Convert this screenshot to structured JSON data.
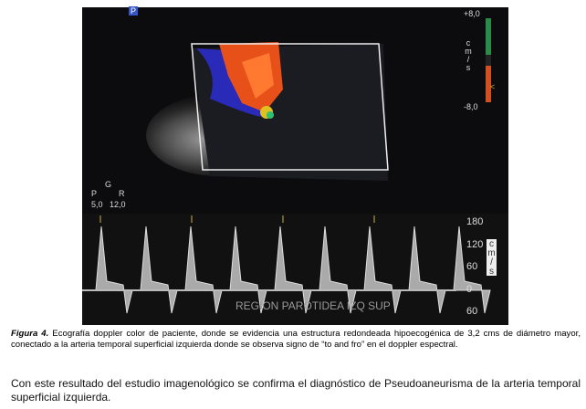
{
  "figure": {
    "ultrasound": {
      "marker": "P",
      "scale_top": "+8,0",
      "scale_unit": "cm/s",
      "scale_bottom": "-8,0",
      "pointer": "<",
      "probe": {
        "p": "P",
        "g": "G",
        "r": "R",
        "left": "5,0",
        "right": "12,0"
      }
    },
    "spectral": {
      "ticks": [
        "180",
        "120",
        "60",
        "0",
        "60"
      ],
      "unit": "cm/s",
      "overlay": "REGION PAROTIDEA IZQ SUP"
    }
  },
  "caption": {
    "label": "Figura 4.",
    "text": " Ecografía doppler color de paciente, donde se evidencia una estructura redondeada hipoecogénica de 3,2 cms de diámetro mayor, conectado a la arteria temporal superficial izquierda donde se observa signo de “to and fro” en el doppler espectral."
  },
  "paragraph": "Con este resultado del estudio imagenológico se confirma el diagnóstico de Pseudoaneurisma de la arteria temporal superficial izquierda."
}
